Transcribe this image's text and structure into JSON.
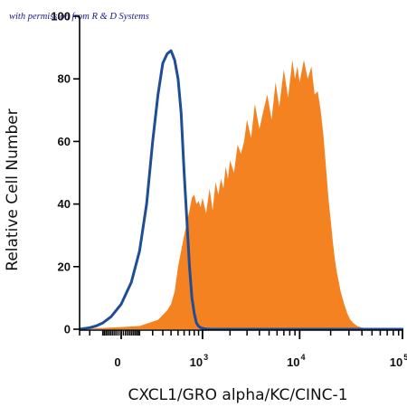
{
  "chart_data": {
    "type": "area",
    "watermark": "with permission from R & D Systems",
    "xlabel": "CXCL1/GRO alpha/KC/CINC-1",
    "ylabel": "Relative Cell Number",
    "xscale": "biexponential",
    "ylim": [
      0,
      100
    ],
    "y_ticks": [
      0,
      20,
      40,
      60,
      80,
      100
    ],
    "x_ticks": [
      {
        "label": "0",
        "exp": ""
      },
      {
        "label": "10",
        "exp": "3"
      },
      {
        "label": "10",
        "exp": "4"
      },
      {
        "label": "10",
        "exp": "5"
      }
    ],
    "grid": false,
    "legend": "none",
    "colors": {
      "filled": "#F58220",
      "outline": "#1F4E96"
    },
    "series": [
      {
        "style": "filled",
        "x": [
          -300,
          100,
          250,
          350,
          400,
          450,
          500,
          600,
          700,
          750,
          800,
          850,
          900,
          950,
          1000,
          1100,
          1200,
          1300,
          1400,
          1500,
          1600,
          1700,
          1800,
          1900,
          2000,
          2200,
          2400,
          2600,
          2800,
          3000,
          3300,
          3600,
          4000,
          4400,
          4800,
          5300,
          5800,
          6300,
          7000,
          7700,
          8500,
          9000,
          9500,
          10000,
          11000,
          12000,
          13000,
          14000,
          15000,
          16000,
          17000,
          18000,
          19000,
          20000,
          21000,
          22000,
          23000,
          25000,
          27000,
          29000,
          31000,
          33000,
          36000,
          40000,
          45000,
          50000,
          60000,
          70000,
          100000
        ],
        "y": [
          0,
          1,
          3,
          6,
          8,
          12,
          20,
          30,
          38,
          42,
          43,
          40,
          41,
          39,
          42,
          37,
          45,
          38,
          47,
          43,
          48,
          45,
          52,
          48,
          54,
          50,
          59,
          56,
          60,
          67,
          61,
          72,
          64,
          70,
          75,
          67,
          79,
          71,
          83,
          74,
          86,
          80,
          84,
          79,
          86,
          80,
          84,
          75,
          76,
          70,
          62,
          52,
          42,
          35,
          28,
          22,
          18,
          12,
          8,
          5,
          3,
          2,
          1,
          0.5,
          0.3,
          0,
          0,
          0,
          0
        ]
      },
      {
        "style": "outline",
        "x": [
          -300,
          -200,
          -150,
          -100,
          -50,
          0,
          50,
          100,
          150,
          200,
          250,
          300,
          350,
          400,
          450,
          500,
          550,
          600,
          650,
          700,
          750,
          800,
          850,
          900,
          950,
          1000,
          1100,
          1200,
          1400,
          100000
        ],
        "y": [
          0,
          0.5,
          1,
          2,
          4,
          8,
          15,
          25,
          40,
          60,
          75,
          85,
          88,
          89,
          86,
          80,
          69,
          50,
          35,
          20,
          10,
          5,
          2,
          1,
          0.5,
          0.3,
          0.1,
          0,
          0,
          0
        ]
      }
    ]
  }
}
